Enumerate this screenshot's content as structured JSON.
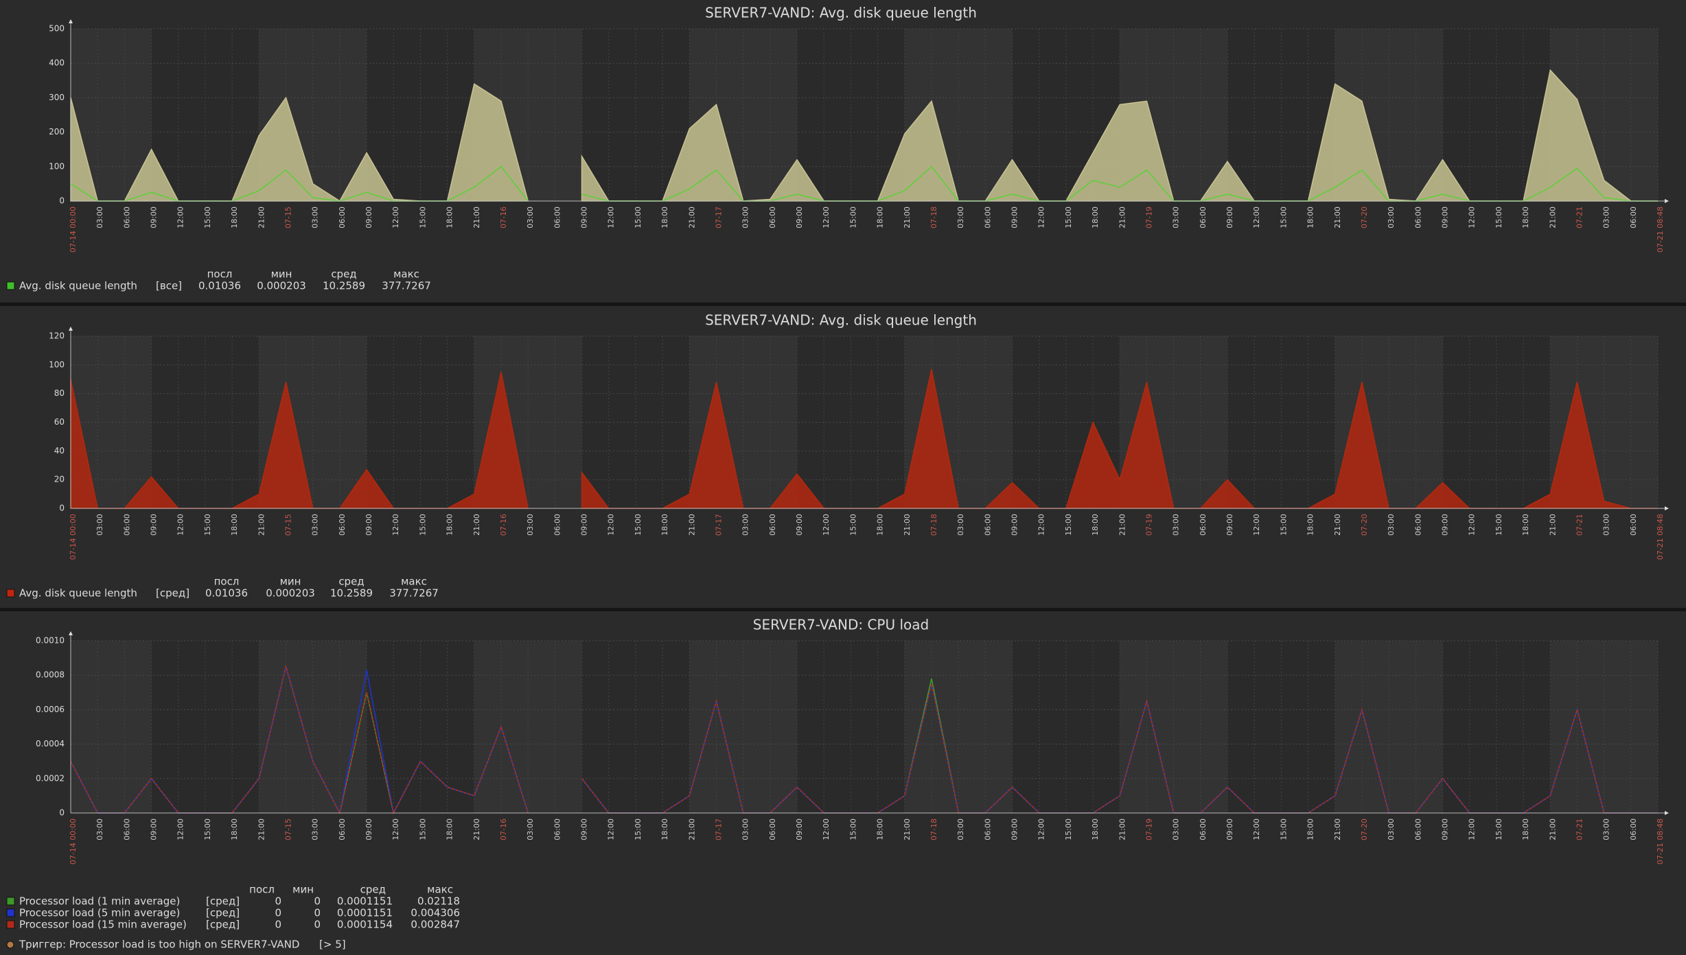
{
  "chart_data": [
    {
      "type": "area",
      "title": "SERVER7-VAND: Avg. disk queue length",
      "categories": [
        "07-14 00:00",
        "03:00",
        "06:00",
        "09:00",
        "12:00",
        "15:00",
        "18:00",
        "21:00",
        "07-15",
        "03:00",
        "06:00",
        "09:00",
        "12:00",
        "15:00",
        "18:00",
        "21:00",
        "07-16",
        "03:00",
        "06:00",
        "09:00",
        "12:00",
        "15:00",
        "18:00",
        "21:00",
        "07-17",
        "03:00",
        "06:00",
        "09:00",
        "12:00",
        "15:00",
        "18:00",
        "21:00",
        "07-18",
        "03:00",
        "06:00",
        "09:00",
        "12:00",
        "15:00",
        "18:00",
        "21:00",
        "07-19",
        "03:00",
        "06:00",
        "09:00",
        "12:00",
        "15:00",
        "18:00",
        "21:00",
        "07-20",
        "03:00",
        "06:00",
        "09:00",
        "12:00",
        "15:00",
        "18:00",
        "21:00",
        "07-21",
        "03:00",
        "06:00",
        "07-21 08:48"
      ],
      "ylim": [
        0,
        500
      ],
      "yticks": [
        0,
        100,
        200,
        300,
        400,
        500
      ],
      "grid": true,
      "series": [
        {
          "style": "area",
          "color": "#c8c392",
          "values": [
            300,
            0,
            0,
            150,
            0,
            0,
            0,
            190,
            300,
            50,
            0,
            140,
            5,
            0,
            0,
            340,
            290,
            0,
            null,
            130,
            0,
            0,
            0,
            210,
            280,
            0,
            5,
            120,
            0,
            0,
            0,
            195,
            290,
            0,
            0,
            120,
            0,
            0,
            140,
            280,
            290,
            0,
            0,
            115,
            0,
            0,
            0,
            340,
            290,
            5,
            0,
            120,
            0,
            0,
            0,
            380,
            295,
            60,
            0,
            0
          ]
        },
        {
          "style": "line",
          "color": "#5fcf3a",
          "values": [
            50,
            0,
            0,
            25,
            0,
            0,
            0,
            30,
            90,
            10,
            0,
            25,
            0,
            0,
            0,
            40,
            100,
            0,
            null,
            20,
            0,
            0,
            0,
            35,
            90,
            0,
            0,
            20,
            0,
            0,
            0,
            30,
            100,
            0,
            0,
            20,
            0,
            0,
            60,
            40,
            90,
            0,
            0,
            20,
            0,
            0,
            0,
            40,
            90,
            0,
            0,
            20,
            0,
            0,
            0,
            40,
            95,
            10,
            0,
            0
          ]
        }
      ],
      "legend": {
        "headers": [
          "посл",
          "мин",
          "сред",
          "макс"
        ],
        "rows": [
          {
            "color": "#3fbf2a",
            "name": "Avg. disk queue length",
            "func": "[все]",
            "stats": [
              "0.01036",
              "0.000203",
              "10.2589",
              "377.7267"
            ]
          }
        ]
      }
    },
    {
      "type": "area",
      "title": "SERVER7-VAND: Avg. disk queue length",
      "categories": [
        "07-14 00:00",
        "03:00",
        "06:00",
        "09:00",
        "12:00",
        "15:00",
        "18:00",
        "21:00",
        "07-15",
        "03:00",
        "06:00",
        "09:00",
        "12:00",
        "15:00",
        "18:00",
        "21:00",
        "07-16",
        "03:00",
        "06:00",
        "09:00",
        "12:00",
        "15:00",
        "18:00",
        "21:00",
        "07-17",
        "03:00",
        "06:00",
        "09:00",
        "12:00",
        "15:00",
        "18:00",
        "21:00",
        "07-18",
        "03:00",
        "06:00",
        "09:00",
        "12:00",
        "15:00",
        "18:00",
        "21:00",
        "07-19",
        "03:00",
        "06:00",
        "09:00",
        "12:00",
        "15:00",
        "18:00",
        "21:00",
        "07-20",
        "03:00",
        "06:00",
        "09:00",
        "12:00",
        "15:00",
        "18:00",
        "21:00",
        "07-21",
        "03:00",
        "06:00",
        "07-21 08:48"
      ],
      "ylim": [
        0,
        120
      ],
      "yticks": [
        0,
        20,
        40,
        60,
        80,
        100,
        120
      ],
      "grid": true,
      "series": [
        {
          "style": "area",
          "color": "#b3280f",
          "values": [
            90,
            0,
            0,
            22,
            0,
            0,
            0,
            10,
            88,
            0,
            0,
            27,
            0,
            0,
            0,
            10,
            95,
            0,
            null,
            25,
            0,
            0,
            0,
            10,
            88,
            0,
            0,
            24,
            0,
            0,
            0,
            10,
            97,
            0,
            0,
            18,
            0,
            0,
            60,
            20,
            88,
            0,
            0,
            20,
            0,
            0,
            0,
            10,
            88,
            0,
            0,
            18,
            0,
            0,
            0,
            10,
            88,
            5,
            0,
            0
          ]
        }
      ],
      "legend": {
        "headers": [
          "посл",
          "мин",
          "сред",
          "макс"
        ],
        "rows": [
          {
            "color": "#c0260e",
            "name": "Avg. disk queue length",
            "func": "[сред]",
            "stats": [
              "0.01036",
              "0.000203",
              "10.2589",
              "377.7267"
            ]
          }
        ]
      }
    },
    {
      "type": "line",
      "title": "SERVER7-VAND: CPU load",
      "categories": [
        "07-14 00:00",
        "03:00",
        "06:00",
        "09:00",
        "12:00",
        "15:00",
        "18:00",
        "21:00",
        "07-15",
        "03:00",
        "06:00",
        "09:00",
        "12:00",
        "15:00",
        "18:00",
        "21:00",
        "07-16",
        "03:00",
        "06:00",
        "09:00",
        "12:00",
        "15:00",
        "18:00",
        "21:00",
        "07-17",
        "03:00",
        "06:00",
        "09:00",
        "12:00",
        "15:00",
        "18:00",
        "21:00",
        "07-18",
        "03:00",
        "06:00",
        "09:00",
        "12:00",
        "15:00",
        "18:00",
        "21:00",
        "07-19",
        "03:00",
        "06:00",
        "09:00",
        "12:00",
        "15:00",
        "18:00",
        "21:00",
        "07-20",
        "03:00",
        "06:00",
        "09:00",
        "12:00",
        "15:00",
        "18:00",
        "21:00",
        "07-21",
        "03:00",
        "06:00",
        "07-21 08:48"
      ],
      "ylim": [
        0,
        0.001
      ],
      "yticks": [
        0,
        0.0002,
        0.0004,
        0.0006,
        0.0008,
        {
          "value": 0.001,
          "label": "0.0010"
        }
      ],
      "grid": true,
      "series": [
        {
          "style": "line",
          "color": "#3d9a28",
          "values": [
            0.0003,
            0,
            0,
            0.0002,
            0,
            0,
            0,
            0.0002,
            0.00085,
            0.0003,
            0,
            0.0007,
            0,
            0.0003,
            0.00015,
            0.0001,
            0.0005,
            0,
            null,
            0.0002,
            0,
            0,
            0,
            0.0001,
            0.00065,
            0,
            0,
            0.00015,
            0,
            0,
            0,
            0.0001,
            0.00078,
            0,
            0,
            0.00015,
            0,
            0,
            0,
            0.0001,
            0.00065,
            0,
            0,
            0.00015,
            0,
            0,
            0,
            0.0001,
            0.0006,
            0,
            0,
            0.0002,
            0,
            0,
            0,
            0.0001,
            0.0006,
            0,
            0,
            0
          ]
        },
        {
          "style": "line",
          "color": "#2233cc",
          "values": [
            0.0003,
            0,
            0,
            0.0002,
            0,
            0,
            0,
            0.0002,
            0.00085,
            0.0003,
            0,
            0.00083,
            0,
            0.0003,
            0.00015,
            0.0001,
            0.0005,
            0,
            null,
            0.0002,
            0,
            0,
            0,
            0.0001,
            0.00065,
            0,
            0,
            0.00015,
            0,
            0,
            0,
            0.0001,
            0.00075,
            0,
            0,
            0.00015,
            0,
            0,
            0,
            0.0001,
            0.00065,
            0,
            0,
            0.00015,
            0,
            0,
            0,
            0.0001,
            0.0006,
            0,
            0,
            0.0002,
            0,
            0,
            0,
            0.0001,
            0.0006,
            0,
            0,
            0
          ]
        },
        {
          "style": "line",
          "color": "#b02a1a",
          "values": [
            0.0003,
            0,
            0,
            0.0002,
            0,
            0,
            0,
            0.0002,
            0.00085,
            0.0003,
            0,
            0.0007,
            0,
            0.0003,
            0.00015,
            0.0001,
            0.0005,
            0,
            null,
            0.0002,
            0,
            0,
            0,
            0.0001,
            0.00065,
            0,
            0,
            0.00015,
            0,
            0,
            0,
            0.0001,
            0.00075,
            0,
            0,
            0.00015,
            0,
            0,
            0,
            0.0001,
            0.00065,
            0,
            0,
            0.00015,
            0,
            0,
            0,
            0.0001,
            0.0006,
            0,
            0,
            0.0002,
            0,
            0,
            0,
            0.0001,
            0.0006,
            0,
            0,
            0
          ]
        }
      ],
      "legend": {
        "headers": [
          "посл",
          "мин",
          "сред",
          "макс"
        ],
        "rows": [
          {
            "color": "#3d9a28",
            "name": "Processor load (1 min average)",
            "func": "[сред]",
            "stats": [
              "0",
              "0",
              "0.0001151",
              "0.02118"
            ]
          },
          {
            "color": "#2233cc",
            "name": "Processor load (5 min average)",
            "func": "[сред]",
            "stats": [
              "0",
              "0",
              "0.0001151",
              "0.004306"
            ]
          },
          {
            "color": "#b02a1a",
            "name": "Processor load (15 min average)",
            "func": "[сред]",
            "stats": [
              "0",
              "0",
              "0.0001154",
              "0.002847"
            ]
          }
        ],
        "trigger": {
          "color": "#b07a40",
          "text": "Триггер: Processor load is too high on SERVER7-VAND",
          "condition": "[> 5]"
        }
      }
    }
  ]
}
